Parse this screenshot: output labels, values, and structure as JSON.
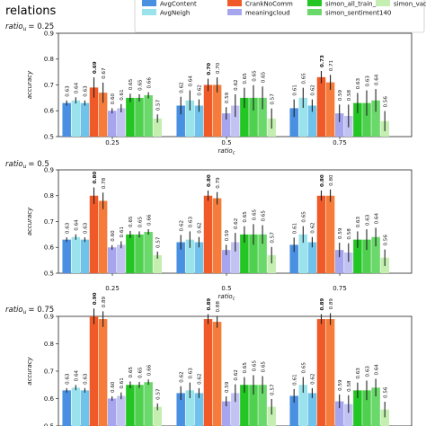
{
  "page": {
    "title": "relations"
  },
  "legend": {
    "entries": [
      {
        "name": "AvgContent",
        "color": "#4a90e2"
      },
      {
        "name": "AvgNeigh",
        "color": "#9be3ec"
      },
      {
        "name": "CrankNoComm",
        "color": "#f05a28"
      },
      {
        "name": "meaningcloud",
        "color": "#a6a6ee"
      },
      {
        "name": "simon_all_train_data",
        "color": "#23c623"
      },
      {
        "name": "simon_sentiment140",
        "color": "#6ad86a"
      },
      {
        "name": "simon_vader",
        "color": "#c4efb0"
      }
    ]
  },
  "chart_data": [
    {
      "type": "bar",
      "title": "ratio_u = 0.25",
      "title_main": "ratio",
      "title_sub": "u",
      "title_value": "= 0.25",
      "xlabel_main": "ratio",
      "xlabel_sub": "c",
      "ylabel": "accuracy",
      "ylim": [
        0.5,
        0.9
      ],
      "yticks": [
        "0.5",
        "0.6",
        "0.7",
        "0.8",
        "0.9"
      ],
      "yticks_values": [
        0.5,
        0.6,
        0.7,
        0.8,
        0.9
      ],
      "categories": [
        "0.25",
        "0.5",
        "0.75"
      ],
      "series": [
        {
          "name": "AvgContent",
          "values": [
            0.63,
            0.62,
            0.61
          ],
          "labels": [
            "0.63",
            "0.62",
            "0.61"
          ]
        },
        {
          "name": "AvgNeigh",
          "values": [
            0.64,
            0.64,
            0.65
          ],
          "labels": [
            "0.64",
            "0.64",
            "0.65"
          ]
        },
        {
          "name": "",
          "values": [
            0.63,
            0.62,
            0.62
          ],
          "labels": [
            "0.63",
            "0.62",
            "0.62"
          ]
        },
        {
          "name": "CrankNoComm",
          "values": [
            0.69,
            0.7,
            0.73
          ],
          "labels": [
            "0.69",
            "0.70",
            "0.73"
          ],
          "bold": true
        },
        {
          "name": "",
          "values": [
            0.67,
            0.7,
            0.71
          ],
          "labels": [
            "0.67",
            "0.70",
            "0.71"
          ]
        },
        {
          "name": "meaningcloud",
          "values": [
            0.6,
            0.59,
            0.59
          ],
          "labels": [
            "0.60",
            "0.59",
            "0.59"
          ]
        },
        {
          "name": "",
          "values": [
            0.61,
            0.62,
            0.58
          ],
          "labels": [
            "0.61",
            "0.62",
            "0.58"
          ]
        },
        {
          "name": "simon_all_train_data",
          "values": [
            0.65,
            0.65,
            0.63
          ],
          "labels": [
            "0.65",
            "0.65",
            "0.63"
          ]
        },
        {
          "name": "simon_sentiment140",
          "values": [
            0.65,
            0.65,
            0.63
          ],
          "labels": [
            "0.65",
            "0.65",
            "0.63"
          ]
        },
        {
          "name": "",
          "values": [
            0.66,
            0.65,
            0.64
          ],
          "labels": [
            "0.66",
            "0.65",
            "0.64"
          ]
        },
        {
          "name": "simon_vader",
          "values": [
            0.57,
            0.57,
            0.56
          ],
          "labels": [
            "0.57",
            "0.57",
            "0.56"
          ]
        }
      ]
    },
    {
      "type": "bar",
      "title": "ratio_u = 0.5",
      "title_main": "ratio",
      "title_sub": "u",
      "title_value": "= 0.5",
      "xlabel_main": "ratio",
      "xlabel_sub": "c",
      "ylabel": "accuracy",
      "ylim": [
        0.5,
        0.9
      ],
      "yticks": [
        "0.5",
        "0.6",
        "0.7",
        "0.8",
        "0.9"
      ],
      "yticks_values": [
        0.5,
        0.6,
        0.7,
        0.8,
        0.9
      ],
      "categories": [
        "0.25",
        "0.5",
        "0.75"
      ],
      "series": [
        {
          "name": "AvgContent",
          "values": [
            0.63,
            0.62,
            0.61
          ],
          "labels": [
            "0.63",
            "0.62",
            "0.61"
          ]
        },
        {
          "name": "AvgNeigh",
          "values": [
            0.64,
            0.63,
            0.65
          ],
          "labels": [
            "0.64",
            "0.63",
            "0.65"
          ]
        },
        {
          "name": "",
          "values": [
            0.63,
            0.62,
            0.62
          ],
          "labels": [
            "0.63",
            "0.62",
            "0.62"
          ]
        },
        {
          "name": "CrankNoComm",
          "values": [
            0.8,
            0.8,
            0.8
          ],
          "labels": [
            "0.80",
            "0.80",
            "0.80"
          ],
          "bold": true
        },
        {
          "name": "",
          "values": [
            0.78,
            0.79,
            0.8
          ],
          "labels": [
            "0.78",
            "0.79",
            "0.80"
          ]
        },
        {
          "name": "meaningcloud",
          "values": [
            0.6,
            0.59,
            0.59
          ],
          "labels": [
            "0.60",
            "0.59",
            "0.59"
          ]
        },
        {
          "name": "",
          "values": [
            0.61,
            0.62,
            0.58
          ],
          "labels": [
            "0.61",
            "0.62",
            "0.58"
          ]
        },
        {
          "name": "simon_all_train_data",
          "values": [
            0.65,
            0.65,
            0.63
          ],
          "labels": [
            "0.65",
            "0.65",
            "0.63"
          ]
        },
        {
          "name": "simon_sentiment140",
          "values": [
            0.65,
            0.65,
            0.63
          ],
          "labels": [
            "0.65",
            "0.65",
            "0.63"
          ]
        },
        {
          "name": "",
          "values": [
            0.66,
            0.65,
            0.64
          ],
          "labels": [
            "0.66",
            "0.65",
            "0.64"
          ]
        },
        {
          "name": "simon_vader",
          "values": [
            0.57,
            0.57,
            0.56
          ],
          "labels": [
            "0.57",
            "0.57",
            "0.56"
          ]
        }
      ]
    },
    {
      "type": "bar",
      "title": "ratio_u = 0.75",
      "title_main": "ratio",
      "title_sub": "u",
      "title_value": "= 0.75",
      "xlabel_main": "",
      "xlabel_sub": "",
      "ylabel": "accuracy",
      "ylim": [
        0.5,
        0.9
      ],
      "yticks": [
        "0.5",
        "0.6",
        "0.7",
        "0.8",
        "0.9"
      ],
      "yticks_values": [
        0.5,
        0.6,
        0.7,
        0.8,
        0.9
      ],
      "categories": [
        "",
        "",
        ""
      ],
      "series": [
        {
          "name": "AvgContent",
          "values": [
            0.63,
            0.62,
            0.61
          ],
          "labels": [
            "0.63",
            "0.62",
            "0.61"
          ]
        },
        {
          "name": "AvgNeigh",
          "values": [
            0.64,
            0.63,
            0.65
          ],
          "labels": [
            "0.64",
            "0.63",
            "0.65"
          ]
        },
        {
          "name": "",
          "values": [
            0.63,
            0.62,
            0.62
          ],
          "labels": [
            "0.63",
            "0.62",
            "0.62"
          ]
        },
        {
          "name": "CrankNoComm",
          "values": [
            0.9,
            0.89,
            0.89
          ],
          "labels": [
            "0.90",
            "0.89",
            "0.89"
          ],
          "bold": true
        },
        {
          "name": "",
          "values": [
            0.89,
            0.88,
            0.89
          ],
          "labels": [
            "0.89",
            "0.88",
            "0.89"
          ]
        },
        {
          "name": "meaningcloud",
          "values": [
            0.6,
            0.59,
            0.59
          ],
          "labels": [
            "0.60",
            "0.59",
            "0.59"
          ]
        },
        {
          "name": "",
          "values": [
            0.61,
            0.62,
            0.58
          ],
          "labels": [
            "0.61",
            "0.62",
            "0.58"
          ]
        },
        {
          "name": "simon_all_train_data",
          "values": [
            0.65,
            0.65,
            0.63
          ],
          "labels": [
            "0.65",
            "0.65",
            "0.63"
          ]
        },
        {
          "name": "simon_sentiment140",
          "values": [
            0.65,
            0.65,
            0.63
          ],
          "labels": [
            "0.65",
            "0.65",
            "0.63"
          ]
        },
        {
          "name": "",
          "values": [
            0.66,
            0.65,
            0.64
          ],
          "labels": [
            "0.66",
            "0.65",
            "0.64"
          ]
        },
        {
          "name": "simon_vader",
          "values": [
            0.57,
            0.57,
            0.56
          ],
          "labels": [
            "0.57",
            "0.57",
            "0.56"
          ]
        }
      ]
    }
  ],
  "colors": {
    "series": [
      "#4a90e2",
      "#9be3ec",
      "#6fc3ea",
      "#f05a28",
      "#f57c3a",
      "#a6a6ee",
      "#c3c3f3",
      "#23c623",
      "#4fd14f",
      "#6ad86a",
      "#c4efb0"
    ],
    "errorbar": "#222222"
  }
}
